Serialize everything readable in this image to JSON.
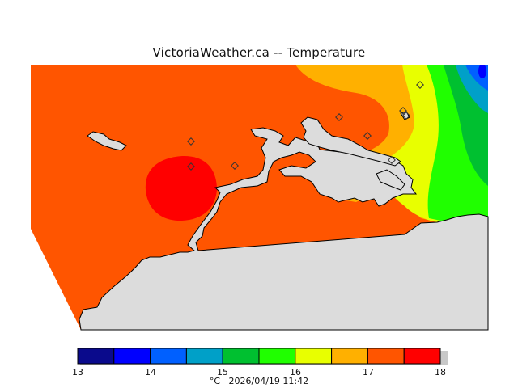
{
  "title": "VictoriaWeather.ca -- Temperature",
  "footer": {
    "unit": "°C",
    "timestamp": "2026/04/19 11:42"
  },
  "legend": {
    "ticks": [
      "13",
      "14",
      "15",
      "16",
      "17",
      "18"
    ],
    "colors": [
      "#0a0a8c",
      "#0000ff",
      "#0060ff",
      "#00a0c8",
      "#00c030",
      "#20ff00",
      "#e8ff00",
      "#ffb000",
      "#ff5500",
      "#ff0000"
    ]
  },
  "map": {
    "land_color": "#dcdcdc",
    "coast_color": "#000000",
    "zone_colors": {
      "base": "#ff5500",
      "warm": "#ff0000",
      "mild": "#ffb000",
      "cool": "#e8ff00",
      "cold": "#20ff00",
      "colder": "#00c030",
      "coldest": "#00a0c8",
      "deep": "#0060ff",
      "deepest": "#0000ff"
    }
  }
}
